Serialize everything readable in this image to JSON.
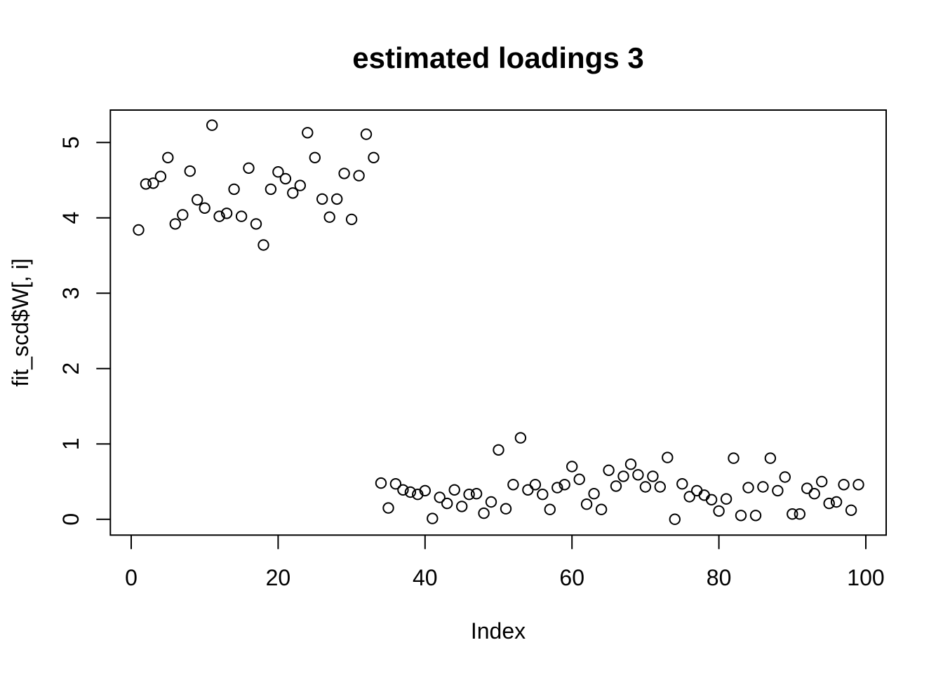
{
  "chart_data": {
    "type": "scatter",
    "title": "estimated loadings 3",
    "xlabel": "Index",
    "ylabel": "fit_scd$W[, i]",
    "point_style": "open-circle",
    "point_color": "#000000",
    "background": "#ffffff",
    "grid": false,
    "legend": null,
    "x_axis": {
      "ticks": [
        0,
        20,
        40,
        60,
        80,
        100
      ],
      "range_shown": [
        -3,
        103
      ]
    },
    "y_axis": {
      "ticks": [
        0,
        1,
        2,
        3,
        4,
        5
      ],
      "range_shown": [
        -0.21,
        5.43
      ]
    },
    "x_start": 1,
    "values": [
      3.84,
      4.45,
      4.46,
      4.55,
      4.8,
      3.92,
      4.04,
      4.62,
      4.24,
      4.13,
      5.23,
      4.02,
      4.06,
      4.38,
      4.02,
      4.66,
      3.92,
      3.64,
      4.38,
      4.61,
      4.52,
      4.33,
      4.43,
      5.13,
      4.8,
      4.25,
      4.01,
      4.25,
      4.59,
      3.98,
      4.56,
      5.11,
      4.8,
      0.48,
      0.15,
      0.47,
      0.39,
      0.36,
      0.33,
      0.38,
      0.01,
      0.29,
      0.21,
      0.39,
      0.17,
      0.33,
      0.34,
      0.08,
      0.23,
      0.92,
      0.14,
      0.46,
      1.08,
      0.39,
      0.46,
      0.33,
      0.13,
      0.42,
      0.46,
      0.7,
      0.53,
      0.2,
      0.34,
      0.13,
      0.65,
      0.44,
      0.57,
      0.73,
      0.59,
      0.43,
      0.57,
      0.43,
      0.82,
      0.0,
      0.47,
      0.3,
      0.38,
      0.32,
      0.26,
      0.11,
      0.27,
      0.81,
      0.05,
      0.42,
      0.05,
      0.43,
      0.81,
      0.38,
      0.56,
      0.07,
      0.07,
      0.41,
      0.34,
      0.5,
      0.21,
      0.23,
      0.46,
      0.12,
      0.46
    ]
  }
}
